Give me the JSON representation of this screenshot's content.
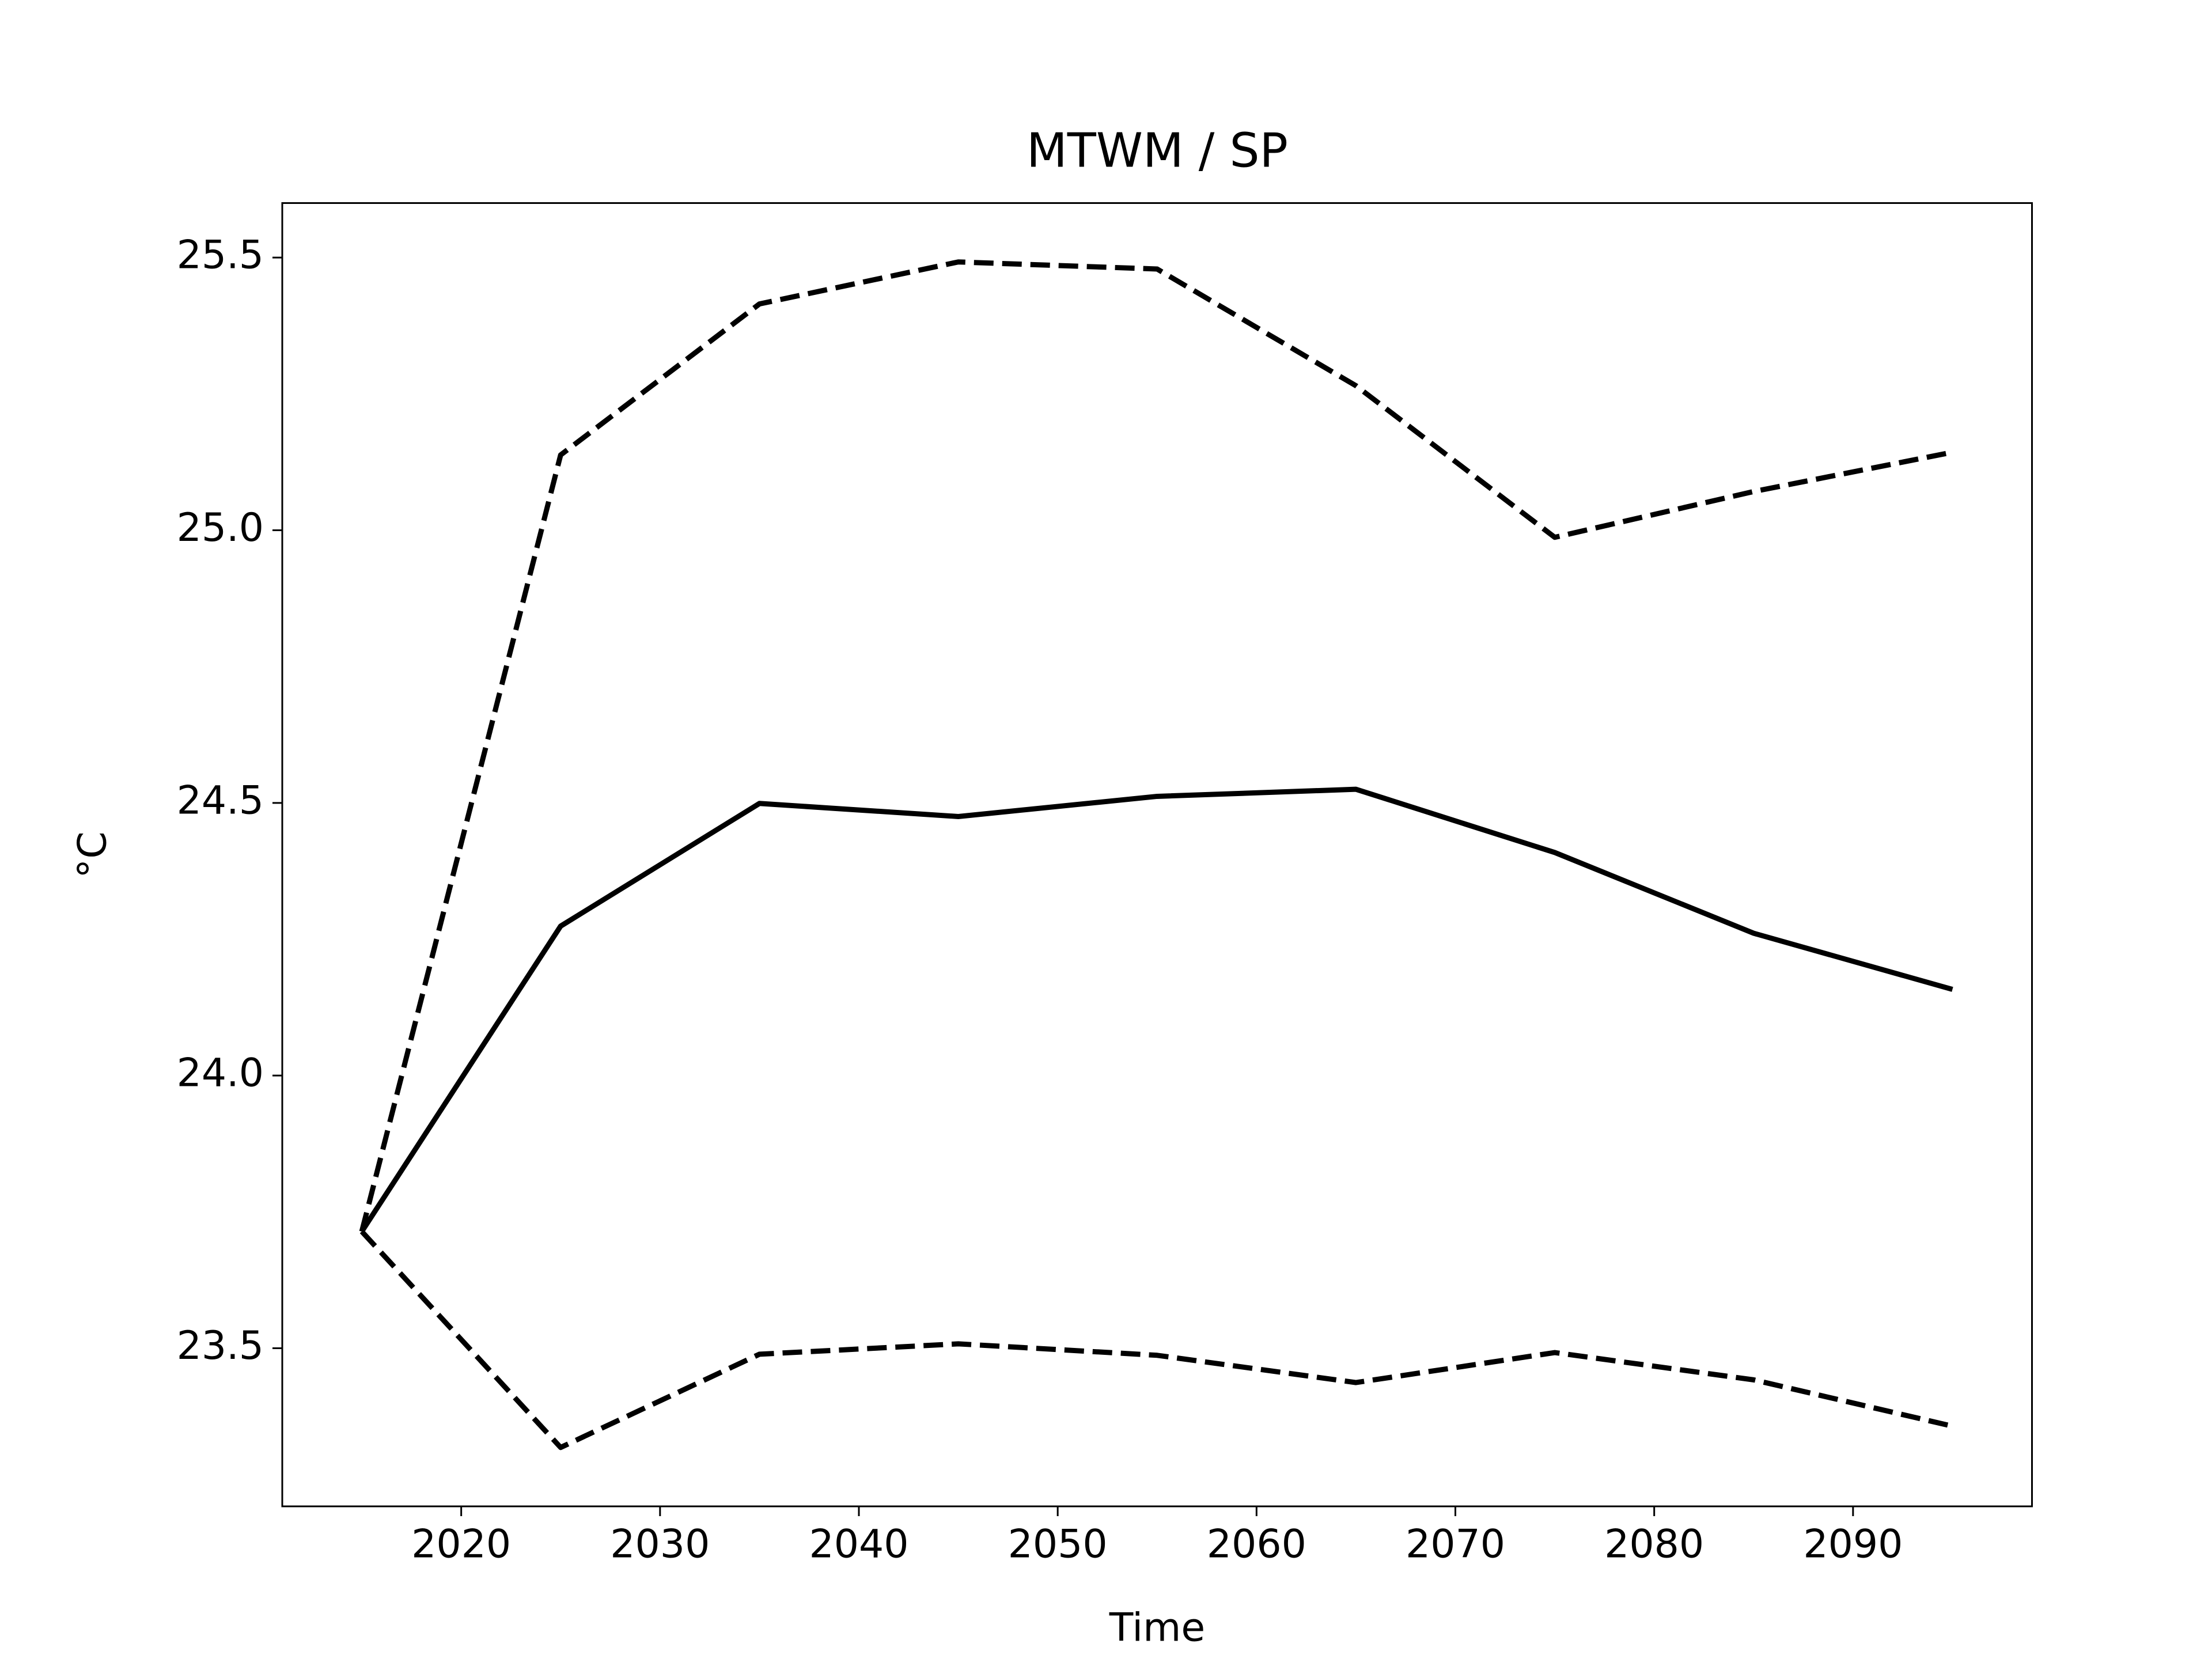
{
  "chart_data": {
    "type": "line",
    "title": "MTWM / SP",
    "x_label": "Time",
    "y_label": "°C",
    "x": [
      2015,
      2025,
      2035,
      2045,
      2055,
      2065,
      2075,
      2085,
      2095
    ],
    "series": [
      {
        "color": "#000000",
        "dashed": false,
        "values": [
          23.714,
          24.274,
          24.499,
          24.475,
          24.512,
          24.525,
          24.409,
          24.261,
          24.158
        ]
      },
      {
        "color": "#000000",
        "dashed": true,
        "values": [
          23.714,
          25.138,
          25.415,
          25.492,
          25.479,
          25.265,
          24.987,
          25.071,
          25.143
        ]
      },
      {
        "color": "#000000",
        "dashed": true,
        "values": [
          23.714,
          23.318,
          23.489,
          23.508,
          23.487,
          23.437,
          23.492,
          23.442,
          23.357
        ]
      }
    ],
    "xlim": [
      2011,
      2099
    ],
    "ylim": [
      23.21,
      25.6
    ],
    "xticks": [
      2020,
      2030,
      2040,
      2050,
      2060,
      2070,
      2080,
      2090
    ],
    "yticks": [
      23.5,
      {
        "value": 24,
        "label": "24.0"
      },
      24.5,
      {
        "value": 25,
        "label": "25.0"
      },
      25.5
    ],
    "grid": false
  }
}
